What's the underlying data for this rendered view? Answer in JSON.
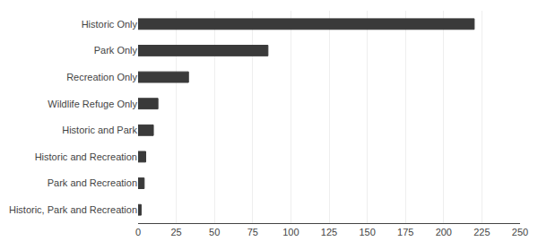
{
  "chart_data": {
    "type": "bar",
    "orientation": "horizontal",
    "categories": [
      "Historic, Park and Recreation",
      "Park and Recreation",
      "Historic and Recreation",
      "Historic and Park",
      "Wildlife Refuge Only",
      "Recreation Only",
      "Park Only",
      "Historic Only"
    ],
    "values": [
      2,
      4,
      5,
      10,
      13,
      33,
      85,
      220
    ],
    "color": "#3a3a3a",
    "xlim": [
      0,
      250
    ],
    "xticks": [
      0,
      25,
      50,
      75,
      100,
      125,
      150,
      175,
      200,
      225,
      250
    ],
    "grid": true
  }
}
